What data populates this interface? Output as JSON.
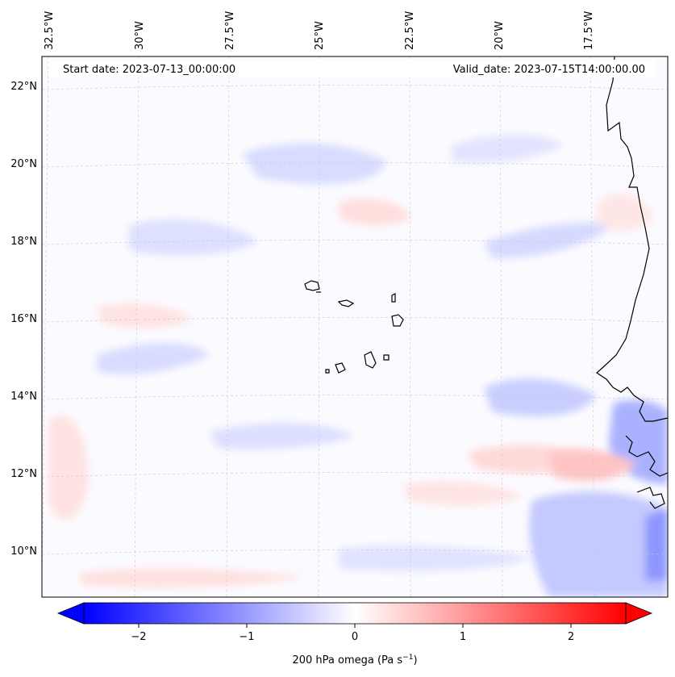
{
  "map": {
    "start_label": "Start date: 2023-07-13_00:00:00",
    "valid_label": "Valid_date: 2023-07-15T14:00:00.00",
    "lon_labels": [
      "32.5°W",
      "30°W",
      "27.5°W",
      "25°W",
      "22.5°W",
      "20°W",
      "17.5°W"
    ],
    "lat_labels": [
      "22°N",
      "20°N",
      "18°N",
      "16°N",
      "14°N",
      "12°N",
      "10°N"
    ],
    "field_colors": {
      "negative": "#0000ff",
      "neutral": "#ffffff",
      "positive": "#ff0000",
      "coast": "#000000",
      "grid": "#c8c8c8"
    }
  },
  "colorbar": {
    "ticks": [
      "−2",
      "−1",
      "0",
      "1",
      "2"
    ],
    "label_main": "200 hPa omega (Pa s",
    "label_sup": "−1",
    "label_end": ")",
    "range": [
      -2.75,
      2.75
    ],
    "extend": "both"
  }
}
